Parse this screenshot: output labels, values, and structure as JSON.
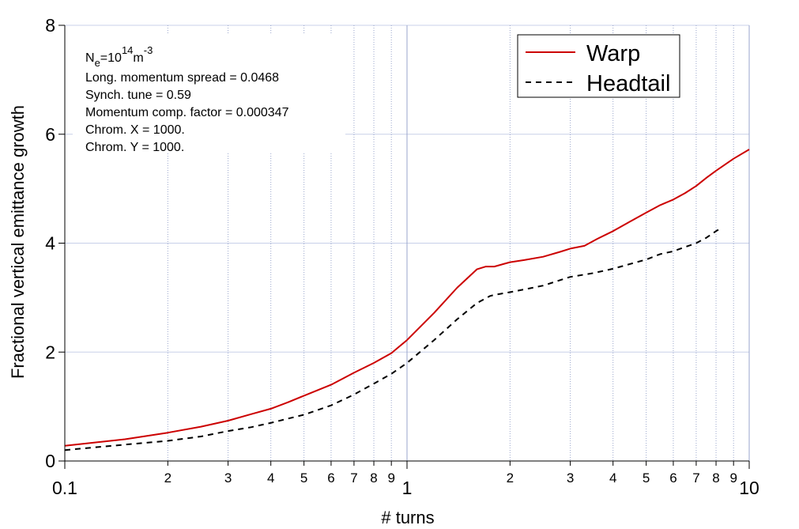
{
  "chart_data": {
    "type": "line",
    "xlabel": "# turns",
    "ylabel": "Fractional vertical emittance growth",
    "xscale": "log",
    "xlim": [
      0.1,
      10
    ],
    "ylim": [
      0,
      8
    ],
    "x_major_ticks": [
      0.1,
      1,
      10
    ],
    "x_major_tick_labels": [
      "0.1",
      "1",
      "10"
    ],
    "x_minor_ticks": [
      0.2,
      0.3,
      0.4,
      0.5,
      0.6,
      0.7,
      0.8,
      0.9,
      2,
      3,
      4,
      5,
      6,
      7,
      8,
      9
    ],
    "x_minor_tick_labels": [
      "2",
      "3",
      "4",
      "5",
      "6",
      "7",
      "8",
      "9",
      "2",
      "3",
      "4",
      "5",
      "6",
      "7",
      "8",
      "9"
    ],
    "y_ticks": [
      0,
      2,
      4,
      6,
      8
    ],
    "y_tick_labels": [
      "0",
      "2",
      "4",
      "6",
      "8"
    ],
    "grid": true,
    "legend_position": "top-right",
    "annotation": {
      "ne_base": "N",
      "ne_sub": "e",
      "ne_eq": "=10",
      "ne_exp": "14",
      "ne_unit": "m",
      "ne_unit_exp": "-3",
      "lines": [
        "Long. momentum spread = 0.0468",
        "Synch. tune = 0.59",
        "Momentum comp. factor = 0.000347",
        "Chrom. X = 1000.",
        "Chrom. Y = 1000."
      ]
    },
    "series": [
      {
        "name": "Warp",
        "color": "#cc0000",
        "style": "solid",
        "x": [
          0.1,
          0.15,
          0.2,
          0.25,
          0.3,
          0.35,
          0.4,
          0.45,
          0.5,
          0.6,
          0.7,
          0.8,
          0.9,
          1.0,
          1.2,
          1.4,
          1.6,
          1.7,
          1.8,
          2.0,
          2.2,
          2.5,
          2.8,
          3.0,
          3.3,
          3.6,
          4.0,
          4.5,
          5.0,
          5.5,
          6.0,
          6.5,
          7.0,
          7.5,
          8.0,
          9.0,
          10.0
        ],
        "y": [
          0.28,
          0.4,
          0.52,
          0.63,
          0.74,
          0.86,
          0.96,
          1.08,
          1.2,
          1.4,
          1.62,
          1.8,
          1.98,
          2.22,
          2.72,
          3.18,
          3.52,
          3.57,
          3.57,
          3.65,
          3.69,
          3.75,
          3.84,
          3.9,
          3.95,
          4.08,
          4.22,
          4.4,
          4.56,
          4.7,
          4.8,
          4.92,
          5.05,
          5.2,
          5.33,
          5.55,
          5.72
        ]
      },
      {
        "name": "Headtail",
        "color": "#000000",
        "style": "dashed",
        "x": [
          0.1,
          0.15,
          0.2,
          0.25,
          0.3,
          0.35,
          0.4,
          0.45,
          0.5,
          0.6,
          0.7,
          0.8,
          0.9,
          1.0,
          1.2,
          1.4,
          1.6,
          1.75,
          1.8,
          2.0,
          2.2,
          2.5,
          2.8,
          3.0,
          3.5,
          4.0,
          4.5,
          5.0,
          5.5,
          6.0,
          6.5,
          7.0,
          7.5,
          8.0,
          8.3
        ],
        "y": [
          0.2,
          0.3,
          0.37,
          0.45,
          0.55,
          0.62,
          0.7,
          0.78,
          0.85,
          1.02,
          1.22,
          1.42,
          1.6,
          1.8,
          2.22,
          2.6,
          2.9,
          3.03,
          3.05,
          3.1,
          3.15,
          3.22,
          3.32,
          3.38,
          3.45,
          3.53,
          3.62,
          3.7,
          3.8,
          3.85,
          3.93,
          4.0,
          4.1,
          4.22,
          4.28
        ]
      }
    ]
  }
}
